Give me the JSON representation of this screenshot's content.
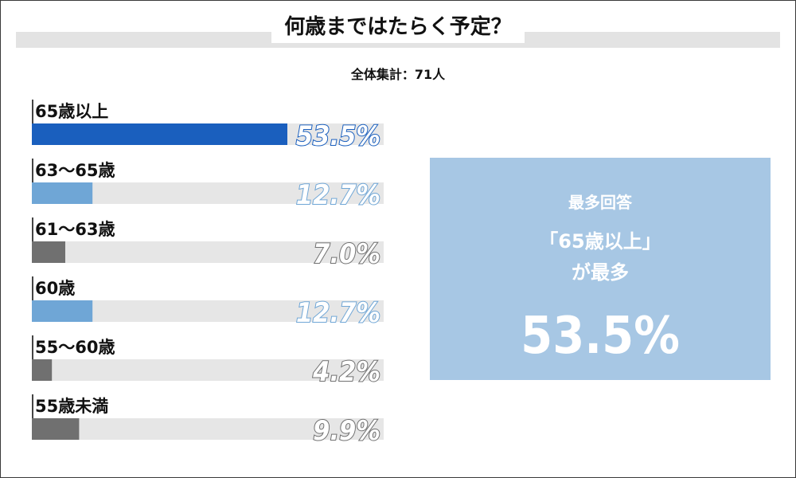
{
  "title": "何歳まではたらく予定？",
  "subtitle": "全体集計：71人",
  "colors": {
    "top": "#1a5fbe",
    "highlight": "#6fa6d6",
    "other": "#707070",
    "track": "#e6e6e6",
    "callout_bg": "#a7c7e4"
  },
  "chart_data": {
    "type": "bar",
    "orientation": "horizontal",
    "categories": [
      "65歳以上",
      "63〜65歳",
      "61〜63歳",
      "60歳",
      "55〜60歳",
      "55歳未満"
    ],
    "values": [
      53.5,
      12.7,
      7.0,
      12.7,
      4.2,
      9.9
    ],
    "value_labels": [
      "53.5%",
      "12.7%",
      "7.0%",
      "12.7%",
      "4.2%",
      "9.9%"
    ],
    "color_keys": [
      "top",
      "highlight",
      "other",
      "highlight",
      "other",
      "other"
    ],
    "xlim": [
      0,
      100
    ],
    "grid": false,
    "legend": "none"
  },
  "callout": {
    "heading": "最多回答",
    "line1": "「65歳以上」",
    "line2": "が最多",
    "value": "53.5%"
  }
}
